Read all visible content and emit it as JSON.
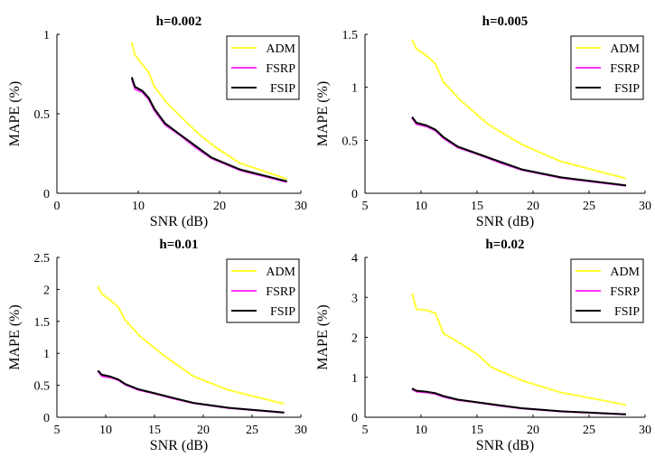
{
  "colors": {
    "ADM": "#ffff33",
    "FSRP": "#ff33ff",
    "FSIP": "#000000"
  },
  "chart_data": [
    {
      "type": "line",
      "title": "h=0.002",
      "xlabel": "SNR (dB)",
      "ylabel": "MAPE (%)",
      "xlim": [
        0,
        30
      ],
      "ylim": [
        0,
        1
      ],
      "xticks": [
        0,
        10,
        20,
        30
      ],
      "yticks": [
        0,
        0.5,
        1
      ],
      "ytick_labels": [
        "0",
        "0.5",
        "1"
      ],
      "legend": "top-right",
      "series": [
        {
          "name": "ADM",
          "x": [
            9.2,
            9.6,
            10.5,
            11.3,
            12.0,
            13.5,
            15.5,
            17.5,
            19.5,
            22.5,
            28.3
          ],
          "y": [
            0.95,
            0.87,
            0.81,
            0.76,
            0.67,
            0.57,
            0.47,
            0.37,
            0.29,
            0.19,
            0.09
          ]
        },
        {
          "name": "FSRP",
          "x": [
            9.2,
            9.6,
            10.5,
            11.3,
            12.0,
            13.3,
            15.0,
            17.0,
            19.0,
            22.5,
            28.3
          ],
          "y": [
            0.72,
            0.655,
            0.635,
            0.59,
            0.52,
            0.43,
            0.37,
            0.29,
            0.22,
            0.145,
            0.07
          ]
        },
        {
          "name": "FSIP",
          "x": [
            9.2,
            9.6,
            10.5,
            11.3,
            12.0,
            13.3,
            15.0,
            17.0,
            19.0,
            22.5,
            28.3
          ],
          "y": [
            0.73,
            0.67,
            0.645,
            0.6,
            0.53,
            0.44,
            0.375,
            0.3,
            0.225,
            0.15,
            0.075
          ]
        }
      ]
    },
    {
      "type": "line",
      "title": "h=0.005",
      "xlabel": "SNR (dB)",
      "ylabel": "MAPE (%)",
      "xlim": [
        5,
        30
      ],
      "ylim": [
        0,
        1.5
      ],
      "xticks": [
        5,
        10,
        15,
        20,
        25,
        30
      ],
      "yticks": [
        0,
        0.5,
        1,
        1.5
      ],
      "ytick_labels": [
        "0",
        "0.5",
        "1",
        "1.5"
      ],
      "legend": "top-right",
      "series": [
        {
          "name": "ADM",
          "x": [
            9.2,
            9.6,
            10.5,
            11.3,
            12.0,
            13.5,
            16.0,
            19.0,
            22.5,
            28.3
          ],
          "y": [
            1.45,
            1.36,
            1.3,
            1.22,
            1.05,
            0.88,
            0.65,
            0.46,
            0.3,
            0.14
          ]
        },
        {
          "name": "FSRP",
          "x": [
            9.2,
            9.6,
            10.5,
            11.3,
            12.0,
            13.3,
            15.0,
            17.0,
            19.0,
            22.5,
            28.3
          ],
          "y": [
            0.71,
            0.65,
            0.63,
            0.59,
            0.52,
            0.43,
            0.37,
            0.29,
            0.22,
            0.145,
            0.07
          ]
        },
        {
          "name": "FSIP",
          "x": [
            9.2,
            9.6,
            10.5,
            11.3,
            12.0,
            13.3,
            15.0,
            17.0,
            19.0,
            22.5,
            28.3
          ],
          "y": [
            0.72,
            0.665,
            0.64,
            0.6,
            0.53,
            0.44,
            0.375,
            0.3,
            0.225,
            0.15,
            0.075
          ]
        }
      ]
    },
    {
      "type": "line",
      "title": "h=0.01",
      "xlabel": "SNR (dB)",
      "ylabel": "MAPE (%)",
      "xlim": [
        5,
        30
      ],
      "ylim": [
        0,
        2.5
      ],
      "xticks": [
        5,
        10,
        15,
        20,
        25,
        30
      ],
      "yticks": [
        0,
        0.5,
        1,
        1.5,
        2,
        2.5
      ],
      "ytick_labels": [
        "0",
        "0.5",
        "1",
        "1.5",
        "2",
        "2.5"
      ],
      "legend": "top-right",
      "series": [
        {
          "name": "ADM",
          "x": [
            9.2,
            9.6,
            10.5,
            11.3,
            12.0,
            13.5,
            16.0,
            19.0,
            22.5,
            28.3
          ],
          "y": [
            2.05,
            1.93,
            1.83,
            1.72,
            1.52,
            1.27,
            0.96,
            0.64,
            0.43,
            0.21
          ]
        },
        {
          "name": "FSRP",
          "x": [
            9.2,
            9.6,
            10.5,
            11.3,
            12.0,
            13.3,
            15.0,
            17.0,
            19.0,
            22.5,
            28.3
          ],
          "y": [
            0.72,
            0.64,
            0.62,
            0.58,
            0.51,
            0.43,
            0.37,
            0.29,
            0.22,
            0.145,
            0.07
          ]
        },
        {
          "name": "FSIP",
          "x": [
            9.2,
            9.6,
            10.5,
            11.3,
            12.0,
            13.3,
            15.0,
            17.0,
            19.0,
            22.5,
            28.3
          ],
          "y": [
            0.73,
            0.665,
            0.635,
            0.59,
            0.52,
            0.44,
            0.375,
            0.3,
            0.225,
            0.15,
            0.075
          ]
        }
      ]
    },
    {
      "type": "line",
      "title": "h=0.02",
      "xlabel": "SNR (dB)",
      "ylabel": "MAPE (%)",
      "xlim": [
        5,
        30
      ],
      "ylim": [
        0,
        4
      ],
      "xticks": [
        5,
        10,
        15,
        20,
        25,
        30
      ],
      "yticks": [
        0,
        1,
        2,
        3,
        4
      ],
      "ytick_labels": [
        "0",
        "1",
        "2",
        "3",
        "4"
      ],
      "legend": "top-right",
      "series": [
        {
          "name": "ADM",
          "x": [
            9.2,
            9.6,
            10.5,
            11.3,
            12.0,
            13.5,
            15.0,
            16.3,
            19.0,
            22.5,
            28.3
          ],
          "y": [
            3.1,
            2.7,
            2.68,
            2.6,
            2.1,
            1.85,
            1.58,
            1.25,
            0.92,
            0.62,
            0.31
          ]
        },
        {
          "name": "FSRP",
          "x": [
            9.2,
            9.6,
            10.5,
            11.3,
            12.0,
            13.3,
            15.0,
            17.0,
            19.0,
            22.5,
            28.3
          ],
          "y": [
            0.7,
            0.64,
            0.62,
            0.58,
            0.51,
            0.43,
            0.37,
            0.29,
            0.22,
            0.145,
            0.07
          ]
        },
        {
          "name": "FSIP",
          "x": [
            9.2,
            9.6,
            10.5,
            11.3,
            12.0,
            13.3,
            15.0,
            17.0,
            19.0,
            22.5,
            28.3
          ],
          "y": [
            0.72,
            0.665,
            0.64,
            0.6,
            0.53,
            0.44,
            0.375,
            0.3,
            0.225,
            0.15,
            0.075
          ]
        }
      ]
    }
  ]
}
